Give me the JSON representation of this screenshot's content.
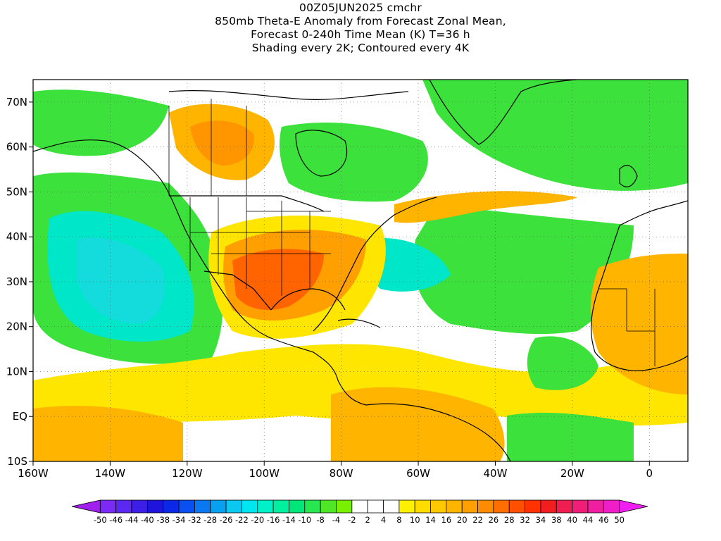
{
  "header": {
    "title_lines": [
      "00Z05JUN2025 cmchr",
      "850mb Theta-E Anomaly from Forecast Zonal Mean,",
      "Forecast 0-240h Time Mean (K) T=36 h",
      "Shading every 2K; Contoured every 4K"
    ]
  },
  "axes": {
    "x_ticks": [
      "160W",
      "140W",
      "120W",
      "100W",
      "80W",
      "60W",
      "40W",
      "20W",
      "0"
    ],
    "x_values": [
      -160,
      -140,
      -120,
      -100,
      -80,
      -60,
      -40,
      -20,
      0
    ],
    "y_ticks": [
      "70N",
      "60N",
      "50N",
      "40N",
      "30N",
      "20N",
      "10N",
      "EQ",
      "10S"
    ],
    "y_values": [
      70,
      60,
      50,
      40,
      30,
      20,
      10,
      0,
      -10
    ],
    "lon_range": [
      -160,
      10
    ],
    "lat_range": [
      -10,
      75
    ]
  },
  "colorbar": {
    "labels": [
      "-50",
      "-46",
      "-44",
      "-40",
      "-38",
      "-34",
      "-32",
      "-28",
      "-26",
      "-22",
      "-20",
      "-16",
      "-14",
      "-10",
      "-8",
      "-4",
      "-2",
      "2",
      "4",
      "8",
      "10",
      "14",
      "16",
      "20",
      "22",
      "26",
      "28",
      "32",
      "34",
      "38",
      "40",
      "44",
      "46",
      "50"
    ],
    "colors": [
      "#a020f0",
      "#7b2bf5",
      "#5a28f0",
      "#3c1ee6",
      "#1e14dc",
      "#0a28e6",
      "#0a50f0",
      "#0a78f0",
      "#0aa0f0",
      "#0ac8f0",
      "#00e6f0",
      "#00f0c8",
      "#00f0a0",
      "#00e678",
      "#28e650",
      "#50e628",
      "#78f000",
      "#ffffff",
      "#ffffff",
      "#ffffff",
      "#fff000",
      "#ffdc00",
      "#ffc800",
      "#ffb400",
      "#ffa000",
      "#ff8c00",
      "#ff6e00",
      "#ff5000",
      "#ff3200",
      "#f01e1e",
      "#f01e50",
      "#f01e78",
      "#f01ea0",
      "#f01ec8",
      "#f01ef0"
    ]
  },
  "map_colors": {
    "land_outline": "#000000",
    "neutral": "#ffffff",
    "cool_green": "#3ce13c",
    "cyan": "#00e6c8",
    "warm_yellow": "#ffe600",
    "warm_orange": "#ffa500",
    "hot_red": "#ff5a00"
  }
}
